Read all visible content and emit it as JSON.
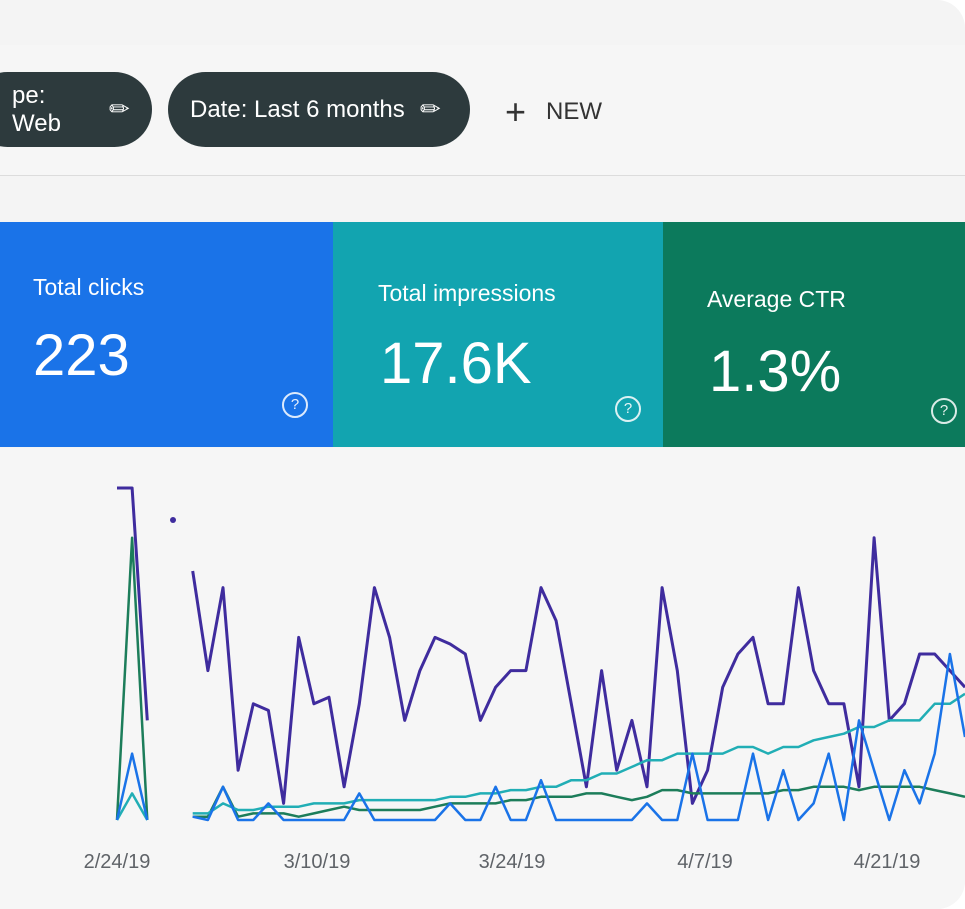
{
  "filters": {
    "type_chip": "pe: Web",
    "date_chip": "Date: Last 6 months",
    "new_label": "NEW"
  },
  "cards": [
    {
      "label": "Total clicks",
      "value": "223",
      "color": "#1a73e8"
    },
    {
      "label": "Total impressions",
      "value": "17.6K",
      "color": "#12a4b0"
    },
    {
      "label": "Average CTR",
      "value": "1.3%",
      "color": "#0c7a5c"
    }
  ],
  "icons": {
    "edit": "pencil-icon",
    "add": "plus-icon",
    "help": "help-circle-icon"
  },
  "chart_data": {
    "type": "line",
    "x_ticks": [
      "2/24/19",
      "3/10/19",
      "3/24/19",
      "4/7/19",
      "4/21/19"
    ],
    "ylim": [
      0,
      100
    ],
    "grid": false,
    "series": [
      {
        "color": "#3f2c9e",
        "values": [
          100,
          100,
          30,
          null,
          null,
          75,
          45,
          70,
          15,
          35,
          33,
          5,
          55,
          35,
          37,
          10,
          35,
          70,
          55,
          30,
          45,
          55,
          53,
          50,
          30,
          40,
          45,
          45,
          70,
          60,
          35,
          10,
          45,
          15,
          30,
          10,
          70,
          45,
          5,
          15,
          40,
          50,
          55,
          35,
          35,
          70,
          45,
          35,
          35,
          10,
          85,
          30,
          35,
          50,
          50,
          45,
          40
        ]
      },
      {
        "color": "#1c7d5a",
        "values": [
          0,
          85,
          0,
          null,
          null,
          1,
          1,
          10,
          1,
          2,
          2,
          2,
          1,
          2,
          3,
          4,
          3,
          3,
          3,
          3,
          3,
          4,
          5,
          5,
          5,
          5,
          6,
          6,
          7,
          7,
          7,
          8,
          8,
          7,
          6,
          7,
          9,
          9,
          8,
          8,
          8,
          8,
          8,
          8,
          9,
          9,
          10,
          10,
          10,
          9,
          10,
          10,
          10,
          10,
          9,
          8,
          7
        ]
      },
      {
        "color": "#21aeb5",
        "values": [
          0,
          8,
          0,
          null,
          null,
          2,
          2,
          5,
          3,
          3,
          4,
          4,
          4,
          5,
          5,
          5,
          6,
          6,
          6,
          6,
          6,
          6,
          7,
          7,
          8,
          8,
          9,
          9,
          10,
          10,
          12,
          12,
          14,
          14,
          16,
          18,
          18,
          20,
          20,
          20,
          20,
          22,
          22,
          20,
          22,
          22,
          24,
          25,
          26,
          28,
          28,
          30,
          30,
          30,
          35,
          35,
          38
        ]
      },
      {
        "color": "#1a73e8",
        "values": [
          0,
          20,
          0,
          null,
          null,
          1,
          0,
          10,
          0,
          0,
          5,
          0,
          0,
          0,
          0,
          0,
          8,
          0,
          0,
          0,
          0,
          0,
          5,
          0,
          0,
          10,
          0,
          0,
          12,
          0,
          0,
          0,
          0,
          0,
          0,
          5,
          0,
          0,
          20,
          0,
          0,
          0,
          20,
          0,
          15,
          0,
          5,
          20,
          0,
          30,
          15,
          0,
          15,
          5,
          20,
          50,
          25
        ]
      }
    ]
  }
}
